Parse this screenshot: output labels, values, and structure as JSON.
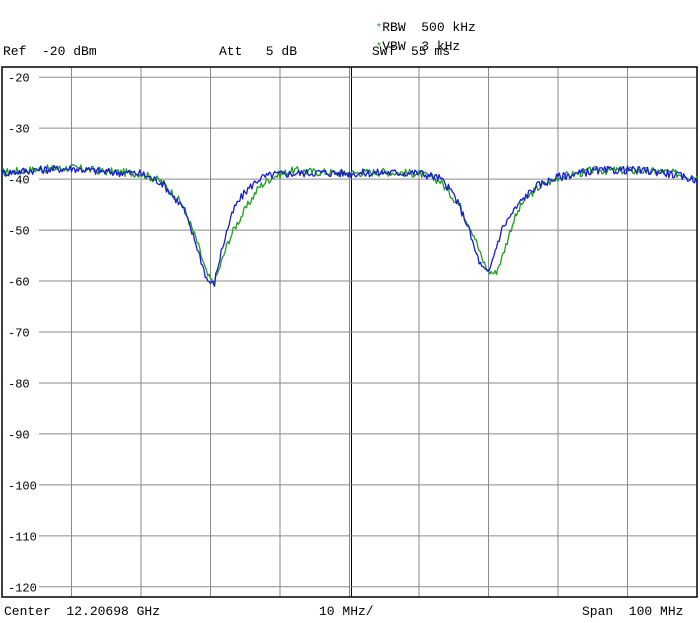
{
  "header": {
    "rbw": "RBW  500 kHz",
    "vbw": "VBW  3 kHz",
    "swt": "SWT  55 ms",
    "ref": "Ref  -20 dBm",
    "att": "Att   5 dB",
    "marker_symbol": "*"
  },
  "footer": {
    "center": "Center  12.20698 GHz",
    "div": "10 MHz/",
    "span": "Span  100 MHz"
  },
  "colors": {
    "trace1": "#1f9e1f",
    "trace2": "#1a1ad8",
    "grid": "#8a8a8a",
    "frame": "#000000"
  },
  "chart_data": {
    "type": "line",
    "ylim": [
      -122,
      -18
    ],
    "y_ticks": [
      "-20",
      "-30",
      "-40",
      "-50",
      "-60",
      "-70",
      "-80",
      "-90",
      "-100",
      "-110",
      "-120"
    ],
    "x_divisions": 10,
    "x_range_div": [
      0,
      10
    ],
    "series": [
      {
        "color": "#1f9e1f",
        "x": [
          0,
          0.5,
          1.0,
          1.5,
          2.0,
          2.3,
          2.6,
          2.8,
          2.95,
          3.05,
          3.15,
          3.25,
          3.35,
          3.5,
          3.7,
          3.9,
          4.2,
          4.5,
          5.0,
          5.5,
          6.0,
          6.3,
          6.6,
          6.8,
          6.9,
          7.0,
          7.1,
          7.2,
          7.35,
          7.5,
          7.7,
          8.0,
          8.5,
          9.0,
          9.5,
          10.0
        ],
        "y": [
          -38.7,
          -38.1,
          -37.8,
          -38.5,
          -38.9,
          -40.5,
          -45,
          -52,
          -58.8,
          -60.6,
          -56.6,
          -52.5,
          -49.5,
          -46,
          -41.5,
          -39.5,
          -38.3,
          -38.6,
          -38.8,
          -38.6,
          -38.9,
          -40.3,
          -45.5,
          -51.2,
          -55.5,
          -58.1,
          -58.5,
          -55.2,
          -48.5,
          -44.4,
          -41.8,
          -39.7,
          -38.3,
          -38.3,
          -38.5,
          -39.6
        ]
      },
      {
        "color": "#1a1ad8",
        "x": [
          0,
          0.5,
          1.0,
          1.5,
          2.0,
          2.3,
          2.6,
          2.8,
          2.95,
          3.05,
          3.15,
          3.25,
          3.35,
          3.5,
          3.7,
          3.9,
          4.2,
          4.5,
          5.0,
          5.5,
          6.0,
          6.3,
          6.5,
          6.7,
          6.8,
          6.9,
          7.0,
          7.1,
          7.2,
          7.35,
          7.5,
          7.7,
          8.0,
          8.5,
          9.0,
          9.5,
          10.0
        ],
        "y": [
          -38.8,
          -38.2,
          -37.9,
          -38.6,
          -38.9,
          -40.7,
          -45.5,
          -53,
          -59.8,
          -60.7,
          -54.5,
          -49.5,
          -45.5,
          -42.5,
          -39.9,
          -39.1,
          -38.9,
          -38.7,
          -38.9,
          -38.7,
          -38.8,
          -39.8,
          -43,
          -49,
          -53.8,
          -57.3,
          -58.6,
          -53.8,
          -49.6,
          -46.5,
          -43.8,
          -41.3,
          -39.6,
          -38.4,
          -38.2,
          -38.6,
          -40.2
        ]
      }
    ]
  }
}
